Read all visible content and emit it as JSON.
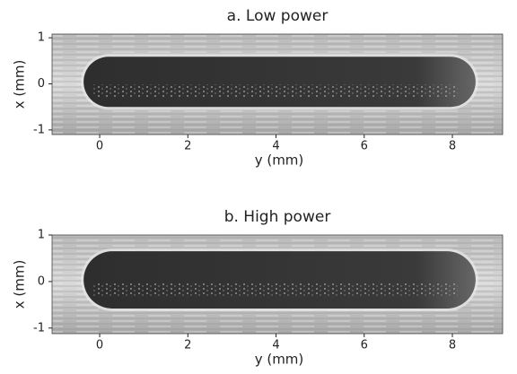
{
  "chart_data": [
    {
      "type": "image",
      "title": "a. Low power",
      "xlabel": "y (mm)",
      "ylabel": "x (mm)",
      "xlim": [
        -1.08,
        9.14
      ],
      "ylim": [
        -1.1,
        1.08
      ],
      "xticks": [
        0,
        2,
        4,
        6,
        8
      ],
      "yticks": [
        -1,
        0,
        1
      ]
    },
    {
      "type": "image",
      "title": "b. High power",
      "xlabel": "y (mm)",
      "ylabel": "x (mm)",
      "xlim": [
        -1.08,
        9.14
      ],
      "ylim": [
        -1.12,
        1.0
      ],
      "xticks": [
        0,
        2,
        4,
        6,
        8
      ],
      "yticks": [
        -1,
        0,
        1
      ]
    }
  ]
}
